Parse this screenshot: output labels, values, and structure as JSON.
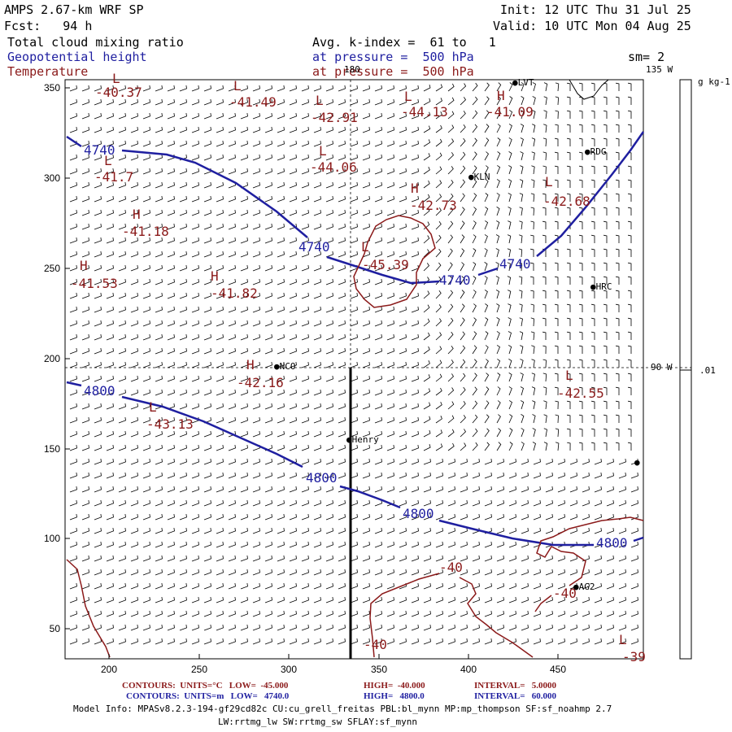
{
  "header": {
    "left1": "AMPS 2.67-km WRF SP",
    "left2": "Fcst:   94 h",
    "init": "Init: 12 UTC Thu 31 Jul 25",
    "valid": "Valid: 10 UTC Mon 04 Aug 25",
    "field1": "Total cloud mixing ratio",
    "field2": "Geopotential height",
    "field3": "Temperature",
    "avg": "Avg. k-index =  61 to   1",
    "pres1": "at pressure =  500 hPa",
    "pres2": "at pressure =  500 hPa",
    "sm": "sm= 2"
  },
  "colors": {
    "height": "#1f1fa0",
    "temperature": "#8b1a1a",
    "barbs": "#000000"
  },
  "axes": {
    "x_ticks": [
      "200",
      "250",
      "300",
      "350",
      "400",
      "450"
    ],
    "y_ticks": [
      "350",
      "300",
      "250",
      "200",
      "150",
      "100",
      "50"
    ]
  },
  "longitudes": {
    "top": "180",
    "right_top": "135 W",
    "right_mid": "90 W"
  },
  "colorbar": {
    "unit": "g kg-1",
    "tick": ".01"
  },
  "stations": [
    {
      "name": "LVT"
    },
    {
      "name": "RDG"
    },
    {
      "name": "KLN"
    },
    {
      "name": "HRC"
    },
    {
      "name": "NCO"
    },
    {
      "name": "Henry"
    },
    {
      "name": "AG2"
    }
  ],
  "height_labels": [
    "4740",
    "4740",
    "4740",
    "4740",
    "4800",
    "4800",
    "4800",
    "4800"
  ],
  "temp_labels": [
    "-40.37",
    "-41.49",
    "-42.91",
    "-44.13",
    "-41.09",
    "-44.06",
    "-41.7",
    "-42.73",
    "-42.68",
    "-41.18",
    "-45.39",
    "-41.53",
    "-41.82",
    "-42.16",
    "-42.55",
    "-43.13",
    "-40",
    "-40",
    "-40",
    "-39"
  ],
  "extrema": [
    "L",
    "L",
    "L",
    "L",
    "H",
    "L",
    "L",
    "H",
    "L",
    "H",
    "L",
    "H",
    "H",
    "H",
    "L",
    "L",
    "L"
  ],
  "footer": {
    "c1_label": "CONTOURS:  UNITS=°C   LOW=  -45.000",
    "c1_high": "HIGH=  -40.000",
    "c1_int": "INTERVAL=   5.0000",
    "c2_label": "CONTOURS:  UNITS=m   LOW=   4740.0",
    "c2_high": "HIGH=   4800.0",
    "c2_int": "INTERVAL=   60.000",
    "model1": "Model Info: MPASv8.2.3-194-gf29cd82c CU:cu_grell_freitas PBL:bl_mynn MP:mp_thompson SF:sf_noahmp 2.7",
    "model2": "LW:rrtmg_lw SW:rrtmg_sw SFLAY:sf_mynn"
  }
}
